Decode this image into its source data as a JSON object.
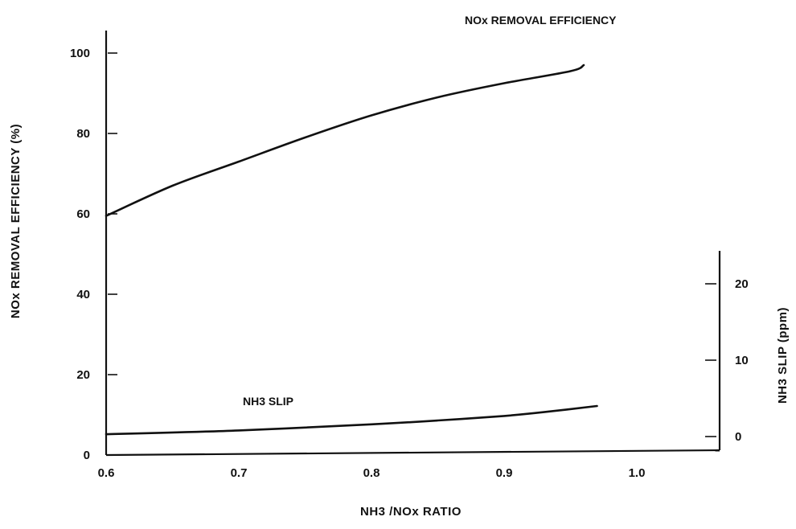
{
  "chart_data": {
    "type": "line",
    "title": "",
    "xlabel": "NH3 /NOx RATIO",
    "ylabel": "NOx REMOVAL EFFICIENCY (%)",
    "y2label": "NH3 SLIP (ppm)",
    "xlim": [
      0.6,
      1.05
    ],
    "ylim": [
      0,
      105
    ],
    "y2lim": [
      0,
      25
    ],
    "x_ticks": [
      "0.6",
      "0.7",
      "0.8",
      "0.9",
      "1.0"
    ],
    "y_ticks": [
      "0",
      "20",
      "40",
      "60",
      "80",
      "100"
    ],
    "y2_ticks": [
      "0",
      "10",
      "20"
    ],
    "grid": false,
    "series": [
      {
        "name": "NOx REMOVAL EFFICIENCY",
        "axis": "left",
        "x": [
          0.6,
          0.65,
          0.7,
          0.75,
          0.8,
          0.85,
          0.9,
          0.95,
          0.96
        ],
        "values": [
          59.5,
          67,
          73,
          79,
          84.5,
          89,
          92.5,
          95.5,
          97
        ]
      },
      {
        "name": "NH3 SLIP",
        "axis": "right",
        "x": [
          0.6,
          0.7,
          0.8,
          0.85,
          0.9,
          0.93,
          0.97
        ],
        "values": [
          0.3,
          0.8,
          1.6,
          2.1,
          2.7,
          3.2,
          4.0
        ]
      }
    ]
  }
}
